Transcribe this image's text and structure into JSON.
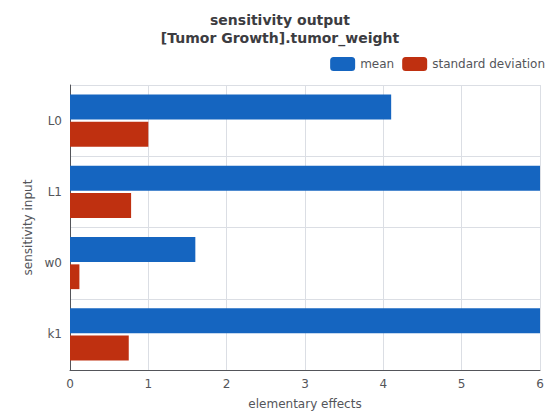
{
  "chart_data": {
    "type": "bar",
    "orientation": "horizontal",
    "title": "sensitivity output\n[Tumor Growth].tumor_weight",
    "xlabel": "elementary effects",
    "ylabel": "sensitivity input",
    "categories": [
      "k1",
      "w0",
      "L1",
      "L0"
    ],
    "series": [
      {
        "name": "mean",
        "color": "#1565c0",
        "values": [
          6.0,
          1.6,
          6.0,
          4.1
        ]
      },
      {
        "name": "standard deviation",
        "color": "#bf3010",
        "values": [
          0.75,
          0.12,
          0.78,
          1.0
        ]
      }
    ],
    "xlim": [
      0,
      6
    ],
    "xticks": [
      0,
      1,
      2,
      3,
      4,
      5,
      6
    ],
    "grid": true,
    "legend": "upper right"
  }
}
